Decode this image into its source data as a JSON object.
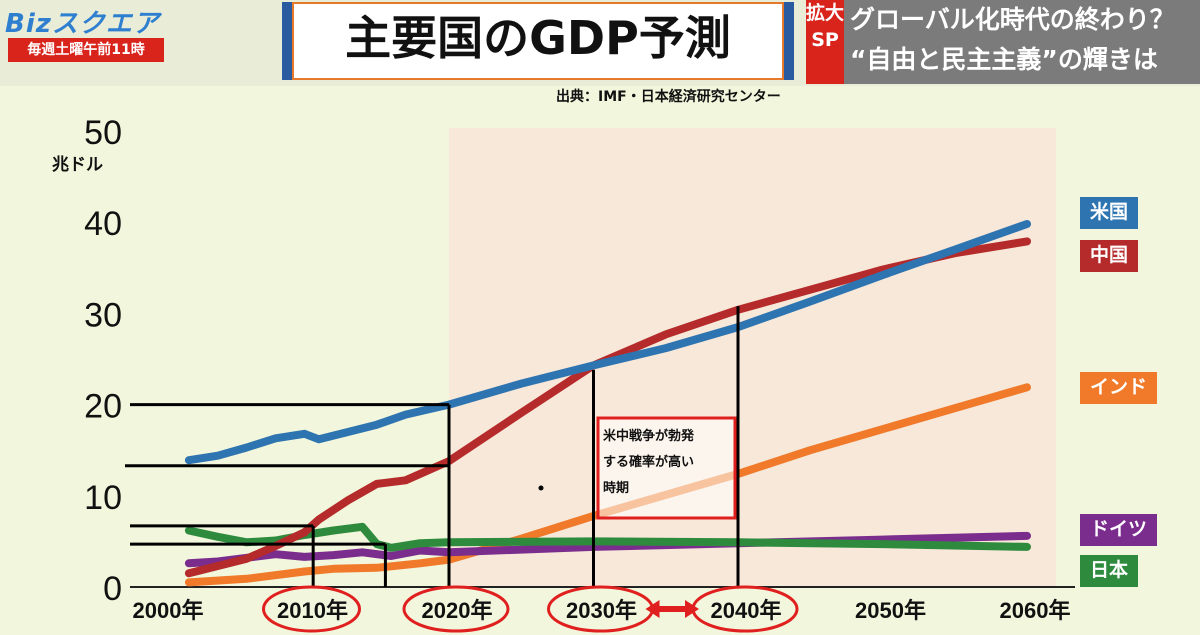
{
  "header": {
    "logo": "Bizスクエア",
    "schedule": "毎週土曜午前11時",
    "title": "主要国のGDP予測",
    "sp_badge": "拡大SP",
    "sp_line1": "グローバル化時代の終わり？",
    "sp_line2": "“自由と民主主義”の輝きは"
  },
  "source": "出典：IMF・日本経済研究センター",
  "annotation": {
    "lines": [
      "米中戦争が勃発",
      "する確率が高い",
      "時期"
    ]
  },
  "colors": {
    "us": "#2e74b0",
    "china": "#b52a2a",
    "india": "#f07a2a",
    "germany": "#7b2d8e",
    "japan": "#2e8b3e",
    "forecast_bg": "#f7e8da",
    "red_marker": "#e01f1f"
  },
  "chart_data": {
    "type": "line",
    "ylabel": "兆ドル",
    "ylim": [
      0,
      50
    ],
    "yticks": [
      "0",
      "10",
      "20",
      "30",
      "40",
      "50"
    ],
    "xlim": [
      2000,
      2060
    ],
    "xticks": [
      {
        "value": 2000,
        "label": "2000年"
      },
      {
        "value": 2010,
        "label": "2010年"
      },
      {
        "value": 2020,
        "label": "2020年"
      },
      {
        "value": 2030,
        "label": "2030年"
      },
      {
        "value": 2040,
        "label": "2040年"
      },
      {
        "value": 2050,
        "label": "2050年"
      },
      {
        "value": 2060,
        "label": "2060年"
      }
    ],
    "forecast_region": {
      "x_start": 2020,
      "x_end": 2062
    },
    "series": [
      {
        "name": "米国",
        "key": "us",
        "points": [
          [
            2002,
            13.9
          ],
          [
            2004,
            14.4
          ],
          [
            2006,
            15.3
          ],
          [
            2008,
            16.3
          ],
          [
            2010,
            16.8
          ],
          [
            2011,
            16.2
          ],
          [
            2013,
            17.0
          ],
          [
            2015,
            17.8
          ],
          [
            2017,
            18.9
          ],
          [
            2020,
            20.0
          ],
          [
            2025,
            22.3
          ],
          [
            2030,
            24.3
          ],
          [
            2035,
            26.2
          ],
          [
            2040,
            28.5
          ],
          [
            2045,
            31.3
          ],
          [
            2050,
            34.2
          ],
          [
            2055,
            37.0
          ],
          [
            2060,
            39.8
          ]
        ]
      },
      {
        "name": "中国",
        "key": "china",
        "points": [
          [
            2002,
            1.5
          ],
          [
            2004,
            2.3
          ],
          [
            2006,
            3.1
          ],
          [
            2008,
            4.5
          ],
          [
            2010,
            6.0
          ],
          [
            2011,
            7.4
          ],
          [
            2013,
            9.5
          ],
          [
            2015,
            11.3
          ],
          [
            2017,
            11.7
          ],
          [
            2020,
            13.8
          ],
          [
            2025,
            19.1
          ],
          [
            2030,
            24.3
          ],
          [
            2035,
            27.7
          ],
          [
            2040,
            30.4
          ],
          [
            2045,
            32.6
          ],
          [
            2050,
            34.8
          ],
          [
            2055,
            36.6
          ],
          [
            2060,
            37.9
          ]
        ]
      },
      {
        "name": "インド",
        "key": "india",
        "points": [
          [
            2002,
            0.5
          ],
          [
            2006,
            0.9
          ],
          [
            2010,
            1.7
          ],
          [
            2012,
            2.0
          ],
          [
            2015,
            2.1
          ],
          [
            2018,
            2.6
          ],
          [
            2020,
            3.0
          ],
          [
            2025,
            5.3
          ],
          [
            2030,
            7.8
          ],
          [
            2035,
            10.1
          ],
          [
            2040,
            12.4
          ],
          [
            2045,
            15.0
          ],
          [
            2050,
            17.3
          ],
          [
            2055,
            19.6
          ],
          [
            2060,
            21.9
          ]
        ]
      },
      {
        "name": "ドイツ",
        "key": "germany",
        "points": [
          [
            2002,
            2.6
          ],
          [
            2004,
            2.8
          ],
          [
            2006,
            3.2
          ],
          [
            2008,
            3.6
          ],
          [
            2010,
            3.3
          ],
          [
            2012,
            3.5
          ],
          [
            2014,
            3.8
          ],
          [
            2016,
            3.4
          ],
          [
            2018,
            4.0
          ],
          [
            2020,
            3.8
          ],
          [
            2030,
            4.4
          ],
          [
            2040,
            4.8
          ],
          [
            2050,
            5.2
          ],
          [
            2060,
            5.6
          ]
        ]
      },
      {
        "name": "日本",
        "key": "japan",
        "points": [
          [
            2002,
            6.2
          ],
          [
            2004,
            5.5
          ],
          [
            2006,
            4.9
          ],
          [
            2008,
            5.1
          ],
          [
            2010,
            5.7
          ],
          [
            2012,
            6.2
          ],
          [
            2014,
            6.6
          ],
          [
            2015,
            4.7
          ],
          [
            2016,
            4.3
          ],
          [
            2018,
            4.8
          ],
          [
            2020,
            4.9
          ],
          [
            2030,
            5.0
          ],
          [
            2040,
            4.9
          ],
          [
            2050,
            4.7
          ],
          [
            2060,
            4.4
          ]
        ]
      }
    ]
  }
}
